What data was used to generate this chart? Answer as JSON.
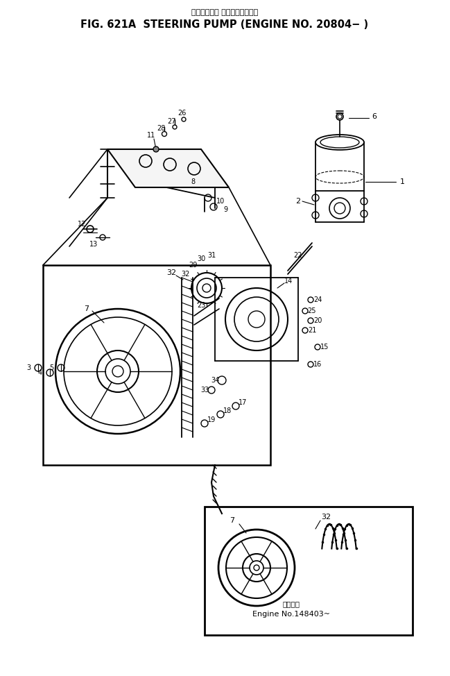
{
  "title_jp": "ステアリング ポンプ　適用号機",
  "title_en": "FIG. 621A  STEERING PUMP (ENGINE NO. 20804− )",
  "subtitle_jp": "適用号機",
  "subtitle_en": "Engine No.148403~",
  "bg_color": "#ffffff",
  "line_color": "#000000",
  "fig_width": 6.49,
  "fig_height": 9.74,
  "dpi": 100
}
